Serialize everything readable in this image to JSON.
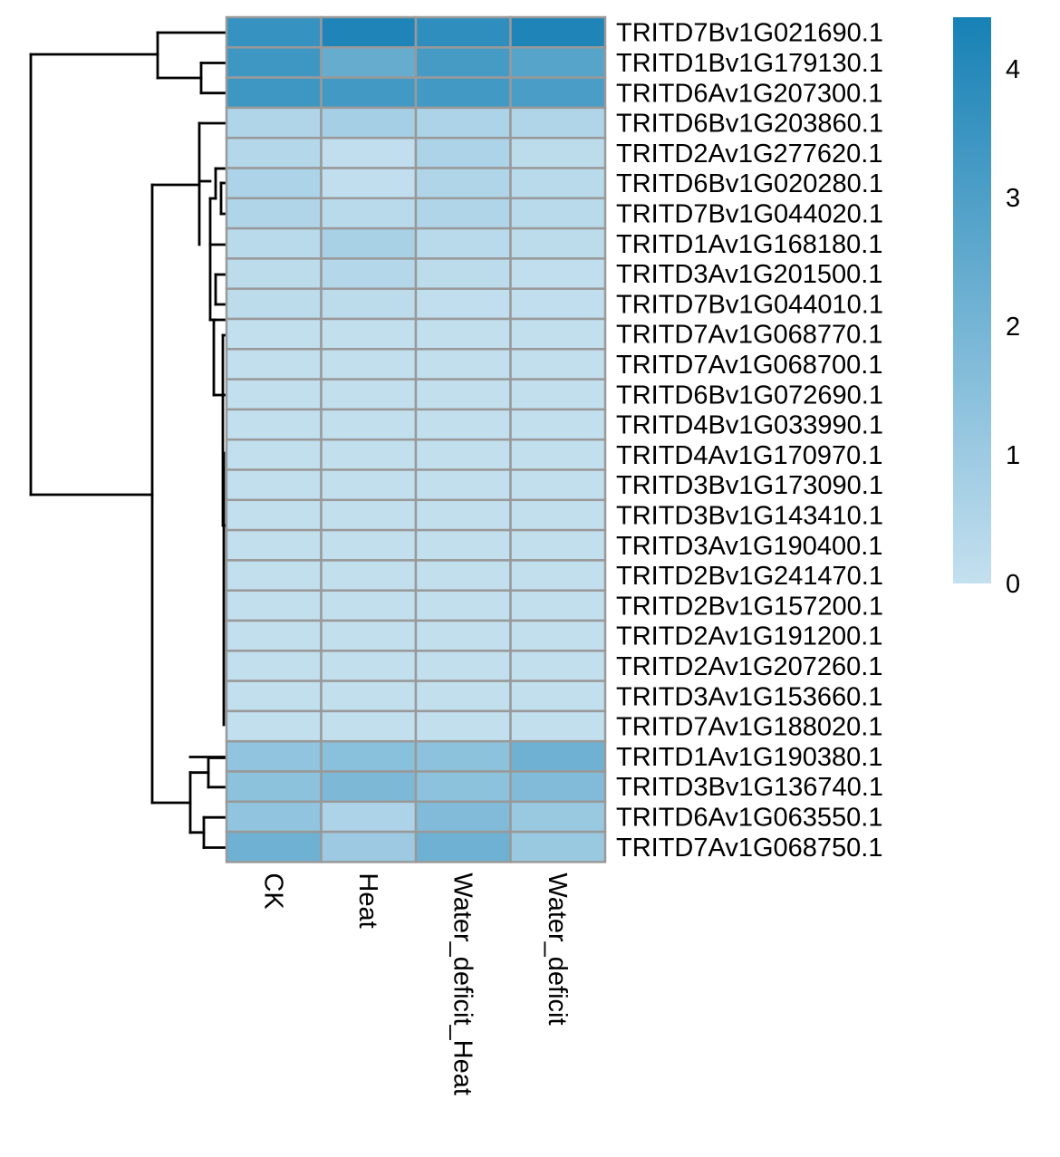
{
  "chart_data": {
    "type": "heatmap",
    "title": "",
    "xlabel": "",
    "ylabel": "",
    "columns": [
      "CK",
      "Heat",
      "Water_deficit_Heat",
      "Water_deficit"
    ],
    "rows": [
      "TRITD7Bv1G021690.1",
      "TRITD1Bv1G179130.1",
      "TRITD6Av1G207300.1",
      "TRITD6Bv1G203860.1",
      "TRITD2Av1G277620.1",
      "TRITD6Bv1G020280.1",
      "TRITD7Bv1G044020.1",
      "TRITD1Av1G168180.1",
      "TRITD3Av1G201500.1",
      "TRITD7Bv1G044010.1",
      "TRITD7Av1G068770.1",
      "TRITD7Av1G068700.1",
      "TRITD6Bv1G072690.1",
      "TRITD4Bv1G033990.1",
      "TRITD4Av1G170970.1",
      "TRITD3Bv1G173090.1",
      "TRITD3Bv1G143410.1",
      "TRITD3Av1G190400.1",
      "TRITD2Bv1G241470.1",
      "TRITD2Bv1G157200.1",
      "TRITD2Av1G191200.1",
      "TRITD2Av1G207260.1",
      "TRITD3Av1G153660.1",
      "TRITD7Av1G188020.1",
      "TRITD1Av1G190380.1",
      "TRITD3Bv1G136740.1",
      "TRITD6Av1G063550.1",
      "TRITD7Av1G068750.1"
    ],
    "values": [
      [
        3.6,
        4.2,
        3.8,
        4.2
      ],
      [
        3.4,
        2.4,
        3.2,
        2.8
      ],
      [
        3.4,
        3.3,
        3.3,
        3.1
      ],
      [
        0.5,
        0.8,
        0.6,
        0.5
      ],
      [
        0.4,
        0.1,
        0.6,
        0.2
      ],
      [
        0.6,
        0.1,
        0.5,
        0.3
      ],
      [
        0.5,
        0.3,
        0.5,
        0.3
      ],
      [
        0.3,
        0.7,
        0.3,
        0.2
      ],
      [
        0.2,
        0.4,
        0.2,
        0.1
      ],
      [
        0.2,
        0.2,
        0.1,
        0.1
      ],
      [
        0.05,
        0.05,
        0.05,
        0.05
      ],
      [
        0.05,
        0.05,
        0.05,
        0.05
      ],
      [
        0.05,
        0.05,
        0.05,
        0.05
      ],
      [
        0.05,
        0.05,
        0.05,
        0.05
      ],
      [
        0.05,
        0.05,
        0.05,
        0.05
      ],
      [
        0.05,
        0.05,
        0.05,
        0.05
      ],
      [
        0.05,
        0.05,
        0.05,
        0.05
      ],
      [
        0.05,
        0.05,
        0.05,
        0.05
      ],
      [
        0.05,
        0.05,
        0.05,
        0.05
      ],
      [
        0.05,
        0.05,
        0.05,
        0.05
      ],
      [
        0.05,
        0.05,
        0.05,
        0.05
      ],
      [
        0.05,
        0.05,
        0.05,
        0.05
      ],
      [
        0.05,
        0.05,
        0.05,
        0.05
      ],
      [
        0.05,
        0.05,
        0.05,
        0.05
      ],
      [
        1.3,
        1.5,
        1.4,
        2.2
      ],
      [
        1.4,
        1.8,
        1.4,
        1.7
      ],
      [
        1.3,
        0.6,
        1.7,
        1.1
      ],
      [
        2.2,
        1.0,
        2.2,
        1.1
      ]
    ],
    "color_range": [
      0,
      4.4
    ],
    "color_low": "#c4e0ef",
    "color_high": "#1781b5",
    "cell_border_color": "#999999",
    "legend": {
      "position": "right",
      "ticks": [
        "0",
        "1",
        "2",
        "3",
        "4"
      ],
      "tick_values": [
        0,
        1,
        2,
        3,
        4
      ]
    },
    "row_dendrogram": true,
    "column_dendrogram": false
  }
}
